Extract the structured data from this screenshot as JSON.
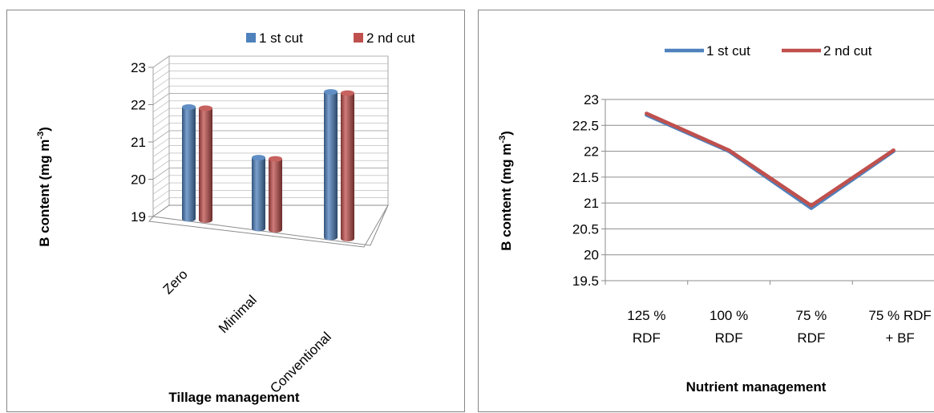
{
  "chart_data": [
    {
      "type": "bar",
      "style": "3d-cylinder",
      "categories": [
        "Zero",
        "Minimal",
        "Conventional"
      ],
      "series": [
        {
          "name": "1 st cut",
          "values": [
            22.0,
            20.9,
            22.9
          ],
          "color": "#4F81BD"
        },
        {
          "name": "2 nd cut",
          "values": [
            22.0,
            20.9,
            22.9
          ],
          "color": "#C0504D"
        }
      ],
      "ylabel_main": "B content (mg m",
      "ylabel_sup": "-3",
      "ylabel_close": ")",
      "xlabel": "Tillage management",
      "yticks": [
        "19",
        "20",
        "21",
        "22",
        "23"
      ],
      "ylim": [
        19,
        23
      ],
      "grid": true,
      "legend": "top-right"
    },
    {
      "type": "line",
      "categories": [
        [
          "125 %",
          "RDF"
        ],
        [
          "100 %",
          "RDF"
        ],
        [
          "75 %",
          "RDF"
        ],
        [
          "75 % RDF",
          "+ BF"
        ]
      ],
      "series": [
        {
          "name": "1 st cut",
          "values": [
            22.7,
            22.0,
            20.9,
            22.0
          ],
          "color": "#4F81BD"
        },
        {
          "name": "2 nd cut",
          "values": [
            22.73,
            22.02,
            20.95,
            22.02
          ],
          "color": "#C0504D"
        }
      ],
      "ylabel_main": "B content (mg m",
      "ylabel_sup": "-3",
      "ylabel_close": ")",
      "xlabel": "Nutrient management",
      "yticks": [
        "19.5",
        "20",
        "20.5",
        "21",
        "21.5",
        "22",
        "22.5",
        "23"
      ],
      "ylim": [
        19.5,
        23
      ],
      "grid": true,
      "legend": "top"
    }
  ]
}
